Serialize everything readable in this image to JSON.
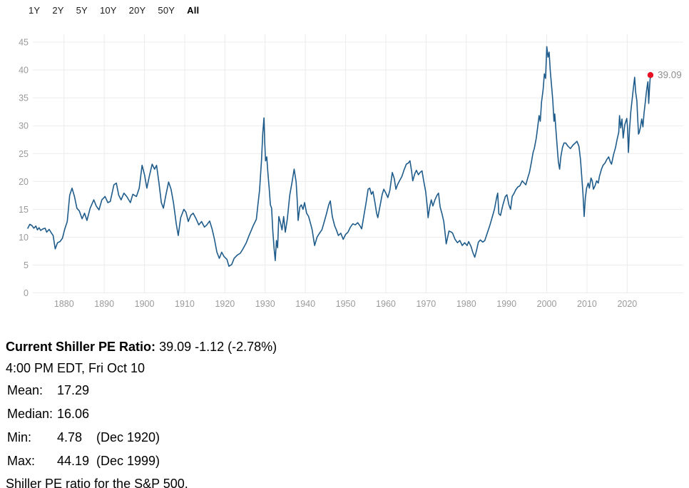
{
  "range_selector": {
    "options": [
      "1Y",
      "2Y",
      "5Y",
      "10Y",
      "20Y",
      "50Y",
      "All"
    ],
    "active": "All"
  },
  "chart_data": {
    "type": "line",
    "series_name": "Shiller PE Ratio",
    "x_ticks": [
      1880,
      1890,
      1900,
      1910,
      1920,
      1930,
      1940,
      1950,
      1960,
      1970,
      1980,
      1990,
      2000,
      2010,
      2020
    ],
    "y_ticks": [
      0,
      5,
      10,
      15,
      20,
      25,
      30,
      35,
      40,
      45
    ],
    "xlim": [
      1871,
      2026.5
    ],
    "ylim": [
      0,
      45
    ],
    "grid": true,
    "legend_position": "none",
    "line_color": "#1f5c8b",
    "dot_color": "#e81123",
    "last_point_label": "39.09",
    "points": [
      [
        1871.0,
        11.6
      ],
      [
        1871.5,
        12.3
      ],
      [
        1872.0,
        12.1
      ],
      [
        1872.5,
        11.6
      ],
      [
        1873.0,
        12.0
      ],
      [
        1873.4,
        11.3
      ],
      [
        1873.8,
        11.7
      ],
      [
        1874.2,
        11.2
      ],
      [
        1874.8,
        11.5
      ],
      [
        1875.3,
        11.6
      ],
      [
        1875.7,
        10.9
      ],
      [
        1876.3,
        11.4
      ],
      [
        1876.9,
        10.7
      ],
      [
        1877.3,
        10.3
      ],
      [
        1877.8,
        7.9
      ],
      [
        1878.4,
        9.0
      ],
      [
        1879.0,
        9.2
      ],
      [
        1879.6,
        9.8
      ],
      [
        1880.2,
        11.5
      ],
      [
        1880.8,
        12.8
      ],
      [
        1881.4,
        17.5
      ],
      [
        1882.0,
        18.8
      ],
      [
        1882.6,
        17.3
      ],
      [
        1883.2,
        15.2
      ],
      [
        1883.8,
        14.7
      ],
      [
        1884.5,
        13.3
      ],
      [
        1885.1,
        14.3
      ],
      [
        1885.7,
        13.0
      ],
      [
        1886.5,
        15.2
      ],
      [
        1887.4,
        16.7
      ],
      [
        1888.0,
        15.6
      ],
      [
        1888.7,
        14.9
      ],
      [
        1889.4,
        16.7
      ],
      [
        1890.2,
        17.3
      ],
      [
        1890.9,
        16.2
      ],
      [
        1891.5,
        16.4
      ],
      [
        1892.4,
        19.4
      ],
      [
        1893.0,
        19.7
      ],
      [
        1893.6,
        17.5
      ],
      [
        1894.2,
        16.7
      ],
      [
        1894.9,
        17.9
      ],
      [
        1895.6,
        17.3
      ],
      [
        1896.5,
        16.2
      ],
      [
        1897.1,
        17.7
      ],
      [
        1898.0,
        17.3
      ],
      [
        1898.7,
        18.8
      ],
      [
        1899.4,
        22.9
      ],
      [
        1900.0,
        21.2
      ],
      [
        1900.6,
        18.8
      ],
      [
        1901.2,
        20.9
      ],
      [
        1901.9,
        23.1
      ],
      [
        1902.5,
        22.2
      ],
      [
        1903.0,
        22.9
      ],
      [
        1903.6,
        19.7
      ],
      [
        1904.2,
        16.2
      ],
      [
        1904.7,
        15.2
      ],
      [
        1905.3,
        17.5
      ],
      [
        1906.0,
        19.9
      ],
      [
        1906.6,
        18.6
      ],
      [
        1907.2,
        16.2
      ],
      [
        1907.9,
        12.4
      ],
      [
        1908.4,
        10.3
      ],
      [
        1909.0,
        13.5
      ],
      [
        1909.8,
        15.0
      ],
      [
        1910.3,
        14.5
      ],
      [
        1910.9,
        12.8
      ],
      [
        1911.5,
        13.9
      ],
      [
        1912.1,
        14.3
      ],
      [
        1912.9,
        13.2
      ],
      [
        1913.5,
        12.2
      ],
      [
        1914.2,
        12.8
      ],
      [
        1914.9,
        11.8
      ],
      [
        1915.5,
        12.2
      ],
      [
        1916.2,
        12.9
      ],
      [
        1916.8,
        11.5
      ],
      [
        1917.4,
        9.6
      ],
      [
        1918.0,
        7.3
      ],
      [
        1918.6,
        6.2
      ],
      [
        1919.2,
        7.3
      ],
      [
        1919.8,
        6.5
      ],
      [
        1920.5,
        6.0
      ],
      [
        1921.0,
        4.78
      ],
      [
        1921.7,
        5.1
      ],
      [
        1922.3,
        6.2
      ],
      [
        1923.1,
        6.8
      ],
      [
        1923.8,
        7.1
      ],
      [
        1924.5,
        7.9
      ],
      [
        1925.3,
        9.0
      ],
      [
        1926.0,
        10.3
      ],
      [
        1926.6,
        11.3
      ],
      [
        1927.0,
        12.0
      ],
      [
        1927.8,
        13.2
      ],
      [
        1928.2,
        15.8
      ],
      [
        1928.6,
        18.4
      ],
      [
        1929.1,
        23.9
      ],
      [
        1929.4,
        28.6
      ],
      [
        1929.7,
        31.4
      ],
      [
        1929.9,
        26.9
      ],
      [
        1930.1,
        23.7
      ],
      [
        1930.4,
        24.4
      ],
      [
        1930.7,
        21.4
      ],
      [
        1931.0,
        18.8
      ],
      [
        1931.3,
        15.8
      ],
      [
        1931.6,
        15.2
      ],
      [
        1931.9,
        11.1
      ],
      [
        1932.2,
        8.1
      ],
      [
        1932.5,
        5.8
      ],
      [
        1932.8,
        9.4
      ],
      [
        1933.1,
        8.1
      ],
      [
        1933.4,
        13.7
      ],
      [
        1933.8,
        12.6
      ],
      [
        1934.2,
        11.3
      ],
      [
        1934.6,
        13.7
      ],
      [
        1935.0,
        10.9
      ],
      [
        1935.5,
        13.2
      ],
      [
        1936.1,
        17.5
      ],
      [
        1936.7,
        19.9
      ],
      [
        1937.2,
        22.2
      ],
      [
        1937.7,
        19.9
      ],
      [
        1938.0,
        16.2
      ],
      [
        1938.2,
        13.0
      ],
      [
        1938.6,
        15.4
      ],
      [
        1939.0,
        15.8
      ],
      [
        1939.4,
        15.0
      ],
      [
        1939.8,
        16.2
      ],
      [
        1940.3,
        14.3
      ],
      [
        1940.8,
        13.7
      ],
      [
        1941.3,
        12.4
      ],
      [
        1941.7,
        11.3
      ],
      [
        1942.1,
        9.4
      ],
      [
        1942.3,
        8.5
      ],
      [
        1942.9,
        10.0
      ],
      [
        1943.5,
        10.7
      ],
      [
        1944.1,
        11.3
      ],
      [
        1944.7,
        12.8
      ],
      [
        1945.2,
        14.1
      ],
      [
        1945.8,
        15.8
      ],
      [
        1946.2,
        16.5
      ],
      [
        1946.7,
        13.7
      ],
      [
        1947.3,
        12.0
      ],
      [
        1947.7,
        11.3
      ],
      [
        1948.2,
        10.3
      ],
      [
        1948.8,
        10.7
      ],
      [
        1949.4,
        9.6
      ],
      [
        1950.0,
        10.5
      ],
      [
        1950.6,
        10.9
      ],
      [
        1951.2,
        11.8
      ],
      [
        1951.8,
        12.4
      ],
      [
        1952.4,
        12.2
      ],
      [
        1953.0,
        12.6
      ],
      [
        1953.6,
        12.0
      ],
      [
        1954.0,
        11.5
      ],
      [
        1954.6,
        14.1
      ],
      [
        1955.1,
        16.2
      ],
      [
        1955.6,
        18.6
      ],
      [
        1956.0,
        18.8
      ],
      [
        1956.4,
        17.7
      ],
      [
        1956.8,
        18.2
      ],
      [
        1957.3,
        16.2
      ],
      [
        1957.7,
        14.3
      ],
      [
        1958.0,
        13.5
      ],
      [
        1958.6,
        15.8
      ],
      [
        1959.1,
        17.7
      ],
      [
        1959.5,
        18.6
      ],
      [
        1960.0,
        17.9
      ],
      [
        1960.5,
        17.1
      ],
      [
        1961.0,
        18.4
      ],
      [
        1961.6,
        21.6
      ],
      [
        1962.1,
        20.5
      ],
      [
        1962.5,
        18.6
      ],
      [
        1962.9,
        19.4
      ],
      [
        1963.4,
        20.1
      ],
      [
        1964.0,
        20.9
      ],
      [
        1964.5,
        22.0
      ],
      [
        1965.1,
        23.1
      ],
      [
        1965.6,
        23.3
      ],
      [
        1966.0,
        23.7
      ],
      [
        1966.4,
        21.8
      ],
      [
        1966.7,
        20.1
      ],
      [
        1967.2,
        21.4
      ],
      [
        1967.6,
        22.0
      ],
      [
        1968.1,
        21.2
      ],
      [
        1968.5,
        21.6
      ],
      [
        1969.0,
        21.9
      ],
      [
        1969.4,
        20.1
      ],
      [
        1969.9,
        18.2
      ],
      [
        1970.3,
        15.4
      ],
      [
        1970.5,
        13.5
      ],
      [
        1970.9,
        15.4
      ],
      [
        1971.3,
        16.7
      ],
      [
        1971.7,
        15.6
      ],
      [
        1972.2,
        16.7
      ],
      [
        1972.7,
        17.5
      ],
      [
        1973.1,
        17.9
      ],
      [
        1973.5,
        15.4
      ],
      [
        1974.0,
        14.1
      ],
      [
        1974.4,
        12.8
      ],
      [
        1974.8,
        10.3
      ],
      [
        1975.0,
        8.8
      ],
      [
        1975.7,
        11.1
      ],
      [
        1976.3,
        10.9
      ],
      [
        1976.6,
        10.7
      ],
      [
        1977.2,
        9.6
      ],
      [
        1977.8,
        9.0
      ],
      [
        1978.4,
        9.4
      ],
      [
        1979.0,
        8.5
      ],
      [
        1979.6,
        9.0
      ],
      [
        1980.2,
        8.5
      ],
      [
        1980.6,
        9.2
      ],
      [
        1981.2,
        8.3
      ],
      [
        1981.6,
        7.3
      ],
      [
        1982.1,
        6.4
      ],
      [
        1982.5,
        7.5
      ],
      [
        1983.0,
        9.1
      ],
      [
        1983.5,
        9.5
      ],
      [
        1984.1,
        9.1
      ],
      [
        1984.6,
        9.4
      ],
      [
        1985.2,
        10.7
      ],
      [
        1985.8,
        12.0
      ],
      [
        1986.4,
        13.5
      ],
      [
        1987.0,
        15.0
      ],
      [
        1987.6,
        17.3
      ],
      [
        1987.8,
        17.9
      ],
      [
        1988.1,
        14.2
      ],
      [
        1988.5,
        13.9
      ],
      [
        1989.1,
        15.8
      ],
      [
        1989.7,
        17.3
      ],
      [
        1990.1,
        17.6
      ],
      [
        1990.6,
        15.8
      ],
      [
        1991.0,
        15.0
      ],
      [
        1991.4,
        17.3
      ],
      [
        1991.9,
        17.9
      ],
      [
        1992.3,
        18.5
      ],
      [
        1992.8,
        19.0
      ],
      [
        1993.3,
        19.2
      ],
      [
        1993.9,
        20.1
      ],
      [
        1994.4,
        19.7
      ],
      [
        1994.8,
        19.4
      ],
      [
        1995.3,
        20.7
      ],
      [
        1995.7,
        21.6
      ],
      [
        1996.2,
        23.5
      ],
      [
        1996.6,
        25.2
      ],
      [
        1996.9,
        25.9
      ],
      [
        1997.4,
        27.8
      ],
      [
        1997.8,
        30.1
      ],
      [
        1998.1,
        31.8
      ],
      [
        1998.4,
        30.8
      ],
      [
        1998.7,
        34.2
      ],
      [
        1999.1,
        36.5
      ],
      [
        1999.4,
        39.3
      ],
      [
        1999.7,
        38.5
      ],
      [
        2000.0,
        44.19
      ],
      [
        2000.3,
        42.3
      ],
      [
        2000.6,
        43.2
      ],
      [
        2000.9,
        39.7
      ],
      [
        2001.2,
        37.2
      ],
      [
        2001.5,
        34.6
      ],
      [
        2001.8,
        30.8
      ],
      [
        2002.0,
        32.1
      ],
      [
        2002.3,
        29.1
      ],
      [
        2002.7,
        25.2
      ],
      [
        2002.9,
        23.5
      ],
      [
        2003.2,
        22.2
      ],
      [
        2003.5,
        24.4
      ],
      [
        2003.9,
        26.1
      ],
      [
        2004.3,
        26.9
      ],
      [
        2004.7,
        26.9
      ],
      [
        2005.3,
        26.3
      ],
      [
        2005.9,
        25.9
      ],
      [
        2006.5,
        26.5
      ],
      [
        2007.1,
        26.9
      ],
      [
        2007.5,
        27.2
      ],
      [
        2008.0,
        26.3
      ],
      [
        2008.4,
        23.9
      ],
      [
        2008.7,
        20.9
      ],
      [
        2009.0,
        17.9
      ],
      [
        2009.3,
        13.7
      ],
      [
        2009.6,
        17.1
      ],
      [
        2009.9,
        18.8
      ],
      [
        2010.3,
        19.7
      ],
      [
        2010.6,
        18.8
      ],
      [
        2011.0,
        20.6
      ],
      [
        2011.3,
        20.1
      ],
      [
        2011.6,
        18.6
      ],
      [
        2012.0,
        19.2
      ],
      [
        2012.4,
        20.1
      ],
      [
        2012.8,
        19.7
      ],
      [
        2013.1,
        20.9
      ],
      [
        2013.6,
        22.2
      ],
      [
        2014.0,
        22.9
      ],
      [
        2014.5,
        23.3
      ],
      [
        2014.9,
        23.9
      ],
      [
        2015.4,
        24.4
      ],
      [
        2015.8,
        23.5
      ],
      [
        2016.1,
        23.1
      ],
      [
        2016.6,
        24.8
      ],
      [
        2017.1,
        26.1
      ],
      [
        2017.5,
        27.6
      ],
      [
        2017.9,
        28.8
      ],
      [
        2018.1,
        31.8
      ],
      [
        2018.4,
        29.6
      ],
      [
        2018.7,
        31.2
      ],
      [
        2019.0,
        27.8
      ],
      [
        2019.4,
        30.2
      ],
      [
        2019.9,
        31.3
      ],
      [
        2020.1,
        29.5
      ],
      [
        2020.3,
        25.2
      ],
      [
        2020.6,
        29.5
      ],
      [
        2020.9,
        32.5
      ],
      [
        2021.2,
        34.5
      ],
      [
        2021.5,
        36.5
      ],
      [
        2021.85,
        38.7
      ],
      [
        2022.1,
        36.0
      ],
      [
        2022.4,
        34.5
      ],
      [
        2022.6,
        31.5
      ],
      [
        2022.8,
        28.5
      ],
      [
        2023.0,
        28.8
      ],
      [
        2023.3,
        29.8
      ],
      [
        2023.6,
        31.2
      ],
      [
        2023.9,
        29.8
      ],
      [
        2024.2,
        32.3
      ],
      [
        2024.5,
        34.2
      ],
      [
        2024.8,
        36.2
      ],
      [
        2025.0,
        37.3
      ],
      [
        2025.15,
        37.9
      ],
      [
        2025.35,
        34.0
      ],
      [
        2025.5,
        36.2
      ],
      [
        2025.65,
        37.9
      ],
      [
        2025.78,
        39.09
      ]
    ]
  },
  "summary": {
    "headline_label": "Current Shiller PE Ratio:",
    "headline_value": "39.09 -1.12 (-2.78%)",
    "timestamp": "4:00 PM EDT, Fri Oct 10",
    "stats": [
      {
        "label": "Mean:",
        "value": "17.29",
        "note": ""
      },
      {
        "label": "Median:",
        "value": "16.06",
        "note": ""
      },
      {
        "label": "Min:",
        "value": "4.78",
        "note": "(Dec 1920)"
      },
      {
        "label": "Max:",
        "value": "44.19",
        "note": "(Dec 1999)"
      }
    ],
    "caption": "Shiller PE ratio for the S&P 500."
  }
}
